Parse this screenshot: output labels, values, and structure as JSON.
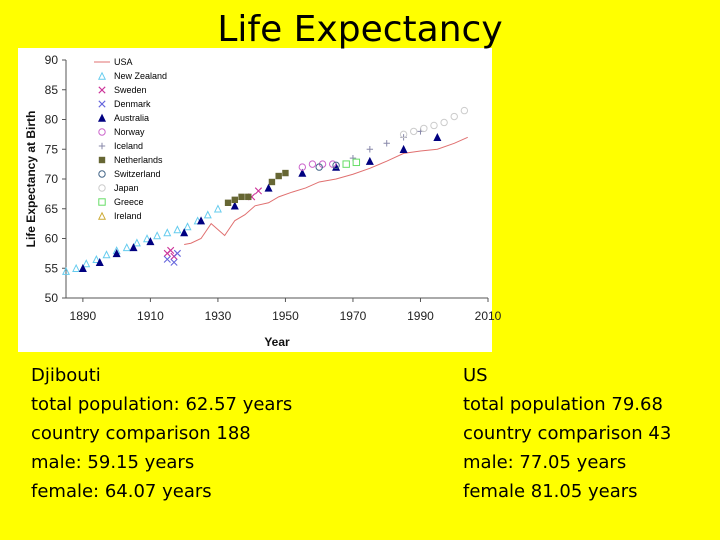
{
  "slide": {
    "title": "Life Expectancy"
  },
  "chart_data": {
    "type": "scatter",
    "title": "",
    "xlabel": "Year",
    "ylabel": "Life Expectancy at Birth",
    "xlim": [
      1885,
      2010
    ],
    "ylim": [
      50,
      90
    ],
    "x_ticks": [
      1890,
      1910,
      1930,
      1950,
      1970,
      1990,
      2010
    ],
    "y_ticks": [
      50,
      55,
      60,
      65,
      70,
      75,
      80,
      85,
      90
    ],
    "grid": false,
    "legend_position": "top-left",
    "series": [
      {
        "name": "USA",
        "marker": "line",
        "color": "#e07070",
        "x": [
          1920,
          1922,
          1925,
          1928,
          1932,
          1935,
          1938,
          1941,
          1945,
          1948,
          1952,
          1956,
          1960,
          1965,
          1970,
          1975,
          1980,
          1985,
          1990,
          1995,
          2000,
          2004
        ],
        "y": [
          59.0,
          59.2,
          60.0,
          62.5,
          60.5,
          63.0,
          64.0,
          65.5,
          66.0,
          67.0,
          67.8,
          68.5,
          69.5,
          70.0,
          70.8,
          71.8,
          73.0,
          74.3,
          74.7,
          75.0,
          76.0,
          77.0
        ]
      },
      {
        "name": "New Zealand",
        "marker": "triangle-open",
        "color": "#66ccee",
        "x": [
          1885,
          1888,
          1891,
          1894,
          1897,
          1900,
          1903,
          1906,
          1909,
          1912,
          1915,
          1918,
          1921,
          1924,
          1927,
          1930
        ],
        "y": [
          54.5,
          55.0,
          55.8,
          56.5,
          57.3,
          58.0,
          58.5,
          59.3,
          60.0,
          60.5,
          61.0,
          61.5,
          62.0,
          63.0,
          64.0,
          65.0
        ]
      },
      {
        "name": "Sweden",
        "marker": "x",
        "color": "#cc3399",
        "x": [
          1915,
          1916,
          1917,
          1940,
          1942
        ],
        "y": [
          57.5,
          58.0,
          57.0,
          67.0,
          68.0
        ]
      },
      {
        "name": "Denmark",
        "marker": "x",
        "color": "#6666dd",
        "x": [
          1915,
          1917,
          1918
        ],
        "y": [
          56.5,
          56.0,
          57.5
        ]
      },
      {
        "name": "Australia",
        "marker": "triangle-filled",
        "color": "#000080",
        "x": [
          1890,
          1895,
          1900,
          1905,
          1910,
          1920,
          1925,
          1935,
          1945,
          1955,
          1965,
          1975,
          1985,
          1995
        ],
        "y": [
          55.0,
          56.0,
          57.5,
          58.5,
          59.5,
          61.0,
          63.0,
          65.5,
          68.5,
          71.0,
          72.0,
          73.0,
          75.0,
          77.0
        ]
      },
      {
        "name": "Norway",
        "marker": "circle-open",
        "color": "#cc66cc",
        "x": [
          1955,
          1958,
          1961,
          1964
        ],
        "y": [
          72.0,
          72.5,
          72.5,
          72.5
        ]
      },
      {
        "name": "Iceland",
        "marker": "plus",
        "color": "#8888aa",
        "x": [
          1970,
          1975,
          1980,
          1985,
          1990
        ],
        "y": [
          73.5,
          75.0,
          76.0,
          77.0,
          78.0
        ]
      },
      {
        "name": "Netherlands",
        "marker": "square-filled",
        "color": "#666633",
        "x": [
          1933,
          1935,
          1937,
          1939,
          1946,
          1948,
          1950
        ],
        "y": [
          66.0,
          66.5,
          67.0,
          67.0,
          69.5,
          70.5,
          71.0
        ]
      },
      {
        "name": "Switzerland",
        "marker": "circle-open",
        "color": "#446688",
        "x": [
          1960,
          1965
        ],
        "y": [
          72.0,
          72.3
        ]
      },
      {
        "name": "Japan",
        "marker": "circle-open",
        "color": "#cccccc",
        "x": [
          1985,
          1988,
          1991,
          1994,
          1997,
          2000,
          2003
        ],
        "y": [
          77.5,
          78.0,
          78.5,
          79.0,
          79.5,
          80.5,
          81.5
        ]
      },
      {
        "name": "Greece",
        "marker": "square-open",
        "color": "#66dd66",
        "x": [
          1968,
          1971
        ],
        "y": [
          72.5,
          72.8
        ]
      },
      {
        "name": "Ireland",
        "marker": "triangle-open",
        "color": "#ccaa33",
        "x": [],
        "y": []
      }
    ]
  },
  "left_block": {
    "lines": [
      "Djibouti",
      "total population: 62.57 years",
      "country comparison 188",
      "male: 59.15 years",
      "female: 64.07 years"
    ]
  },
  "right_block": {
    "lines": [
      "US",
      "total population 79.68",
      "country comparison 43",
      "male: 77.05 years",
      "female 81.05 years"
    ]
  }
}
